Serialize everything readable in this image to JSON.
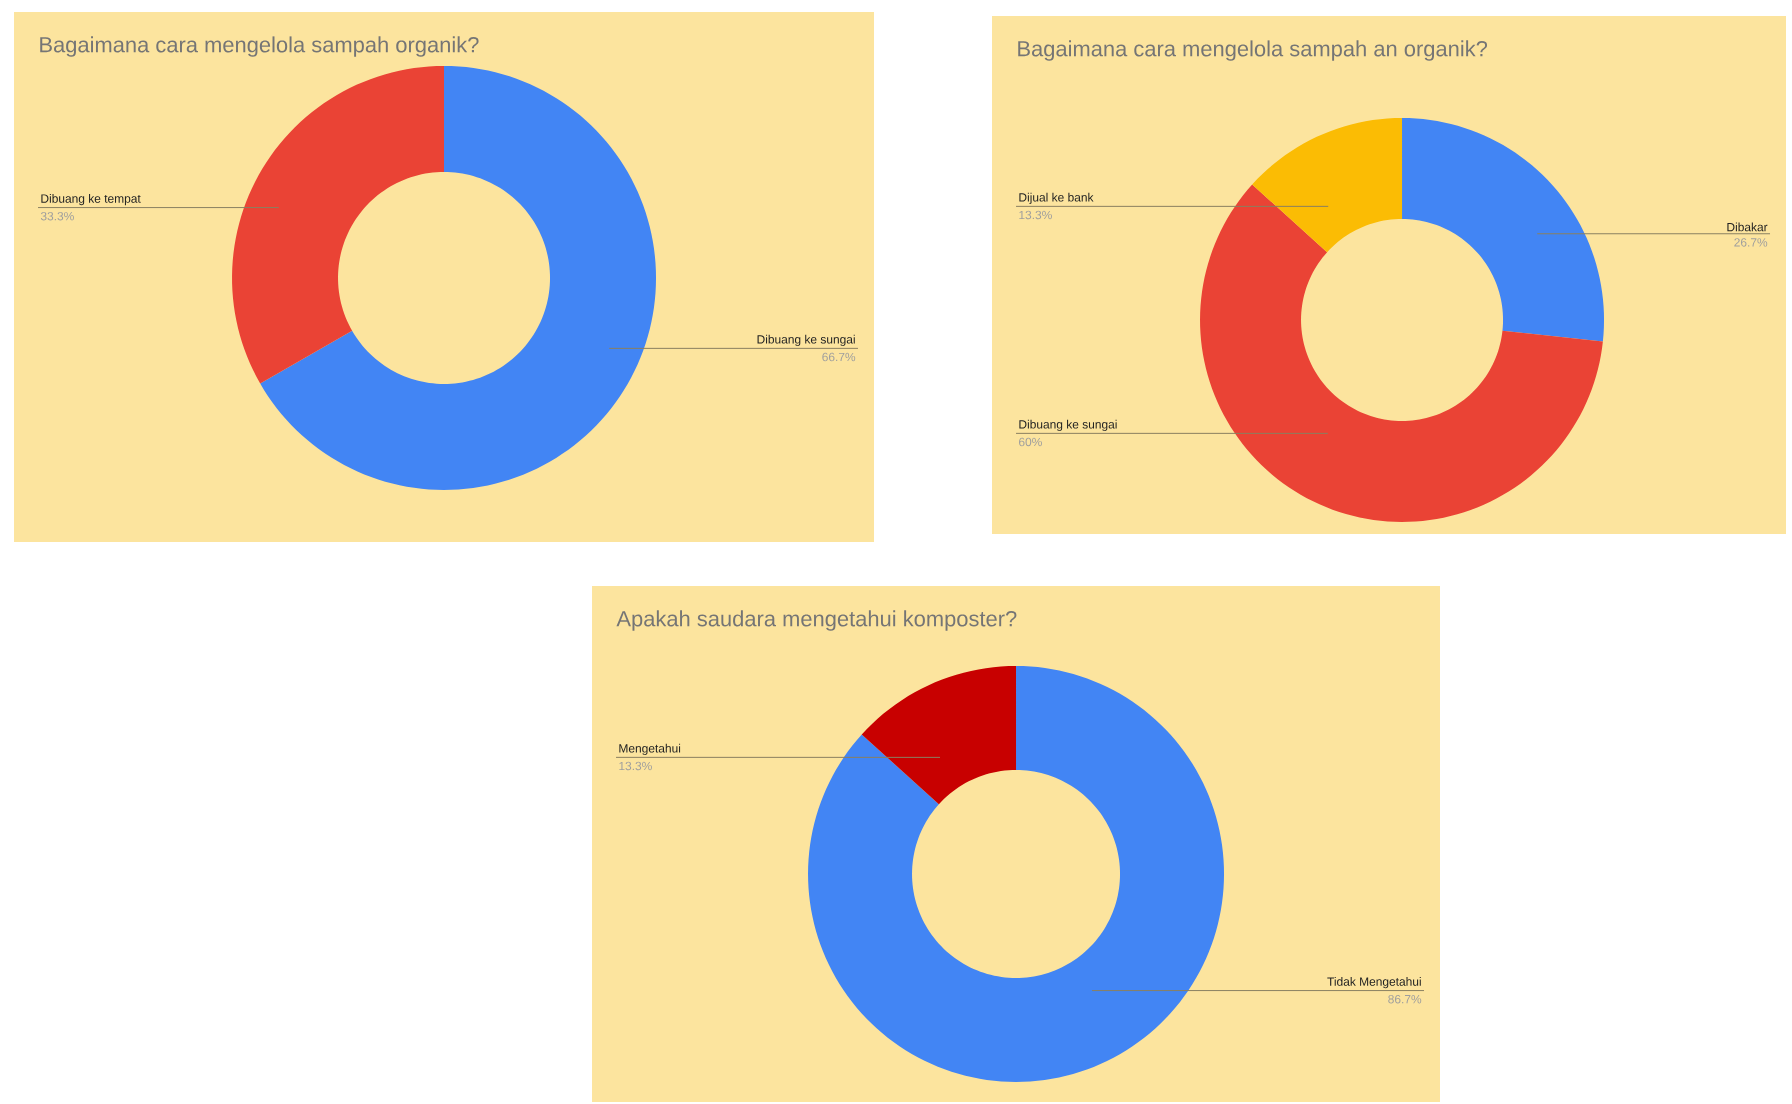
{
  "chart_data": [
    {
      "type": "donut",
      "title": "Bagaimana cara mengelola sampah organik?",
      "categories": [
        "Dibuang ke sungai",
        "Dibuang ke tempat"
      ],
      "values": [
        66.7,
        33.3
      ],
      "colors": [
        "#4285f4",
        "#ea4335"
      ],
      "value_labels": [
        "66.7%",
        "33.3%"
      ]
    },
    {
      "type": "donut",
      "title": "Bagaimana cara mengelola sampah an organik?",
      "categories": [
        "Dibakar",
        "Dibuang ke sungai",
        "Dijual ke bank"
      ],
      "values": [
        26.7,
        60,
        13.3
      ],
      "colors": [
        "#4285f4",
        "#ea4335",
        "#fbbc04"
      ],
      "value_labels": [
        "26.7%",
        "60%",
        "13.3%"
      ]
    },
    {
      "type": "donut",
      "title": "Apakah saudara mengetahui komposter?",
      "categories": [
        "Tidak Mengetahui",
        "Mengetahui"
      ],
      "values": [
        86.7,
        13.3
      ],
      "colors": [
        "#4285f4",
        "#c80000"
      ],
      "value_labels": [
        "86.7%",
        "13.3%"
      ]
    }
  ]
}
